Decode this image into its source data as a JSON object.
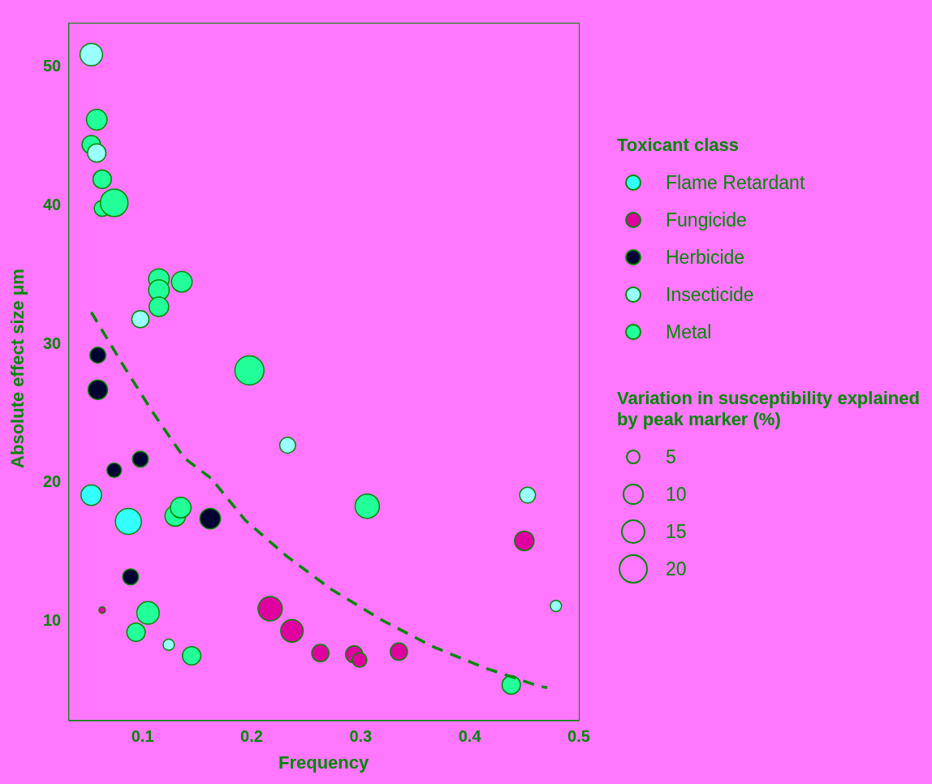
{
  "chart_data": {
    "type": "bubble",
    "xlabel": "Frequency",
    "ylabel": "Absolute effect size μm",
    "legend_title": "Toxicant class",
    "legend": "right",
    "grid": false,
    "marker": "circle",
    "xlim": [
      0.032,
      0.5
    ],
    "xticks": [
      0.1,
      0.2,
      0.3,
      0.4,
      0.5
    ],
    "ylim": [
      2.84,
      53.2
    ],
    "yticks": [
      10,
      20,
      30,
      40,
      50
    ],
    "size_legend": [
      5,
      10,
      15,
      20
    ],
    "annotations": [
      "Variation in susceptibility explained by peak marker (%)"
    ],
    "series": [
      {
        "name": "Flame Retardant",
        "color": "#33ffff",
        "x": [
          0.053,
          0.087
        ],
        "values": [
          19.1,
          17.2
        ],
        "sizes": [
          10,
          16
        ]
      },
      {
        "name": "Fungicide",
        "color": "#e0009f",
        "x": [
          0.063,
          0.217,
          0.237,
          0.263,
          0.294,
          0.299,
          0.335,
          0.45
        ],
        "values": [
          10.8,
          10.9,
          9.3,
          7.7,
          7.6,
          7.2,
          7.8,
          15.8
        ],
        "sizes": [
          1,
          14,
          12,
          7,
          7,
          5,
          7,
          9
        ]
      },
      {
        "name": "Herbicide",
        "color": "#000033",
        "x": [
          0.059,
          0.059,
          0.074,
          0.098,
          0.162,
          0.089
        ],
        "values": [
          29.2,
          26.7,
          20.9,
          21.7,
          17.4,
          13.2
        ],
        "sizes": [
          6,
          9,
          5,
          6,
          10,
          6
        ]
      },
      {
        "name": "Insecticide",
        "color": "#99ffff",
        "x": [
          0.053,
          0.058,
          0.098,
          0.233,
          0.453,
          0.479,
          0.124
        ],
        "values": [
          50.9,
          43.8,
          31.8,
          22.7,
          19.1,
          11.1,
          8.3
        ],
        "sizes": [
          12,
          8,
          7,
          6,
          6,
          3,
          3
        ]
      },
      {
        "name": "Metal",
        "color": "#22ff99",
        "x": [
          0.058,
          0.053,
          0.063,
          0.063,
          0.074,
          0.115,
          0.115,
          0.115,
          0.136,
          0.198,
          0.13,
          0.135,
          0.306,
          0.105,
          0.094,
          0.145,
          0.438
        ],
        "values": [
          46.2,
          44.4,
          41.9,
          39.8,
          40.2,
          34.7,
          33.9,
          32.7,
          34.5,
          28.1,
          17.6,
          18.2,
          18.3,
          10.6,
          9.2,
          7.5,
          5.4
        ],
        "sizes": [
          10,
          8,
          8,
          6,
          18,
          10,
          10,
          9,
          10,
          20,
          10,
          10,
          14,
          12,
          8,
          8,
          8
        ]
      },
      {
        "type": "line",
        "color": "#008800",
        "line_style": "dashed",
        "marker": "none",
        "x": [
          0.053,
          0.082,
          0.11,
          0.138,
          0.163,
          0.194,
          0.232,
          0.273,
          0.319,
          0.365,
          0.413,
          0.464,
          0.471
        ],
        "values": [
          32.3,
          28.5,
          25.0,
          21.8,
          20.3,
          17.3,
          14.7,
          12.3,
          10.1,
          8.2,
          6.65,
          5.3,
          5.2
        ]
      }
    ]
  }
}
